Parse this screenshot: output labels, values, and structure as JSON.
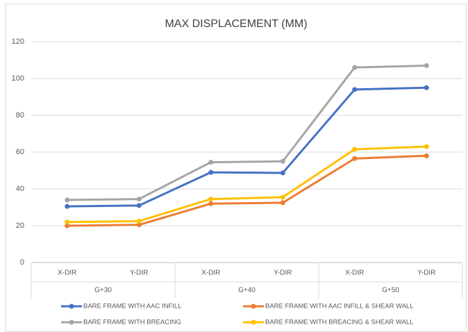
{
  "chart_data": {
    "type": "line",
    "title": "MAX DISPLACEMENT (MM)",
    "categories": [
      "X-DIR",
      "Y-DIR",
      "X-DIR",
      "Y-DIR",
      "X-DIR",
      "Y-DIR"
    ],
    "groups": [
      "G+30",
      "G+40",
      "G+50"
    ],
    "series": [
      {
        "name": "BARE FRAME WITH  AAC INFILL",
        "color": "#4472c4",
        "values": [
          30.5,
          31,
          49,
          48.7,
          94,
          95
        ]
      },
      {
        "name": "BARE FRAME WITH AAC INFILL & SHEAR WALL",
        "color": "#ed7d31",
        "values": [
          20,
          20.5,
          32,
          32.5,
          56.5,
          58
        ]
      },
      {
        "name": "BARE FRAME WITH BREACING",
        "color": "#a5a5a5",
        "values": [
          34,
          34.5,
          54.5,
          55,
          106,
          107
        ]
      },
      {
        "name": "BARE FRAME WITH  BREACING & SHEAR WALL",
        "color": "#ffc000",
        "values": [
          22,
          22.5,
          34.5,
          35.5,
          61.5,
          63
        ]
      }
    ],
    "ylim": [
      0,
      120
    ],
    "yticks": [
      0,
      20,
      40,
      60,
      80,
      100,
      120
    ],
    "grid": true,
    "legend": "bottom"
  }
}
